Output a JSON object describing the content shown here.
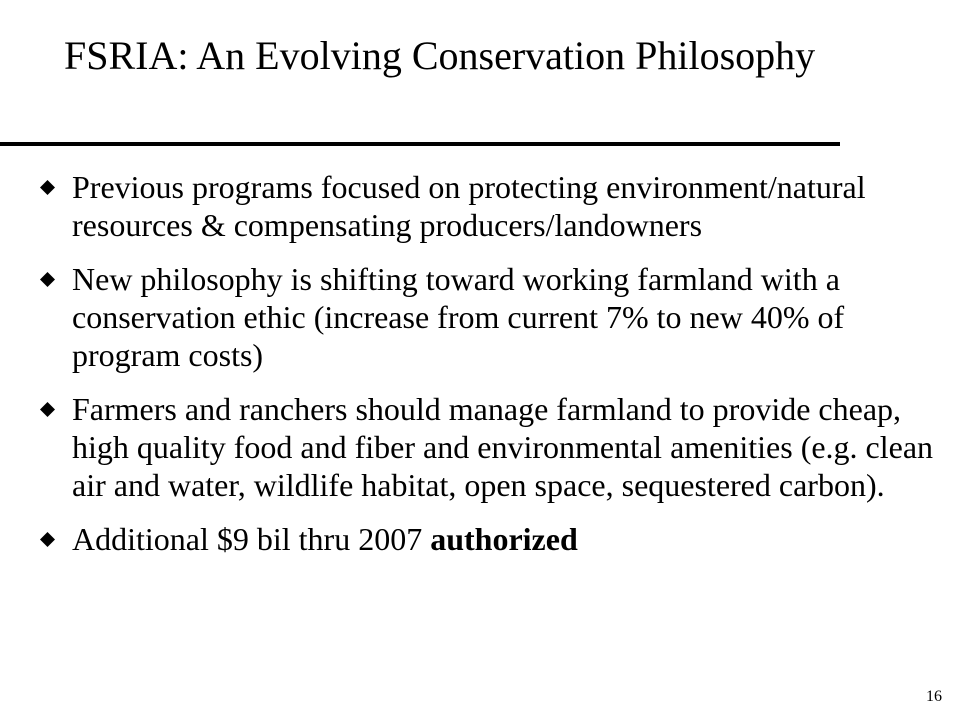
{
  "slide": {
    "title": "FSRIA: An Evolving Conservation Philosophy",
    "bullets": [
      {
        "text": "Previous programs focused on protecting environment/natural resources & compensating producers/landowners"
      },
      {
        "text": "New philosophy is shifting toward working farmland with a conservation ethic (increase from current 7% to new 40% of program costs)"
      },
      {
        "text": "Farmers and ranchers should manage farmland to provide cheap, high quality food and fiber and environmental amenities (e.g. clean air and water, wildlife habitat, open space, sequestered carbon)."
      },
      {
        "text": "Additional $9 bil thru 2007 ",
        "emphasis": "authorized"
      }
    ],
    "page_number": "16",
    "bullet_icon": "diamond-icon",
    "text_color": "#000000"
  }
}
